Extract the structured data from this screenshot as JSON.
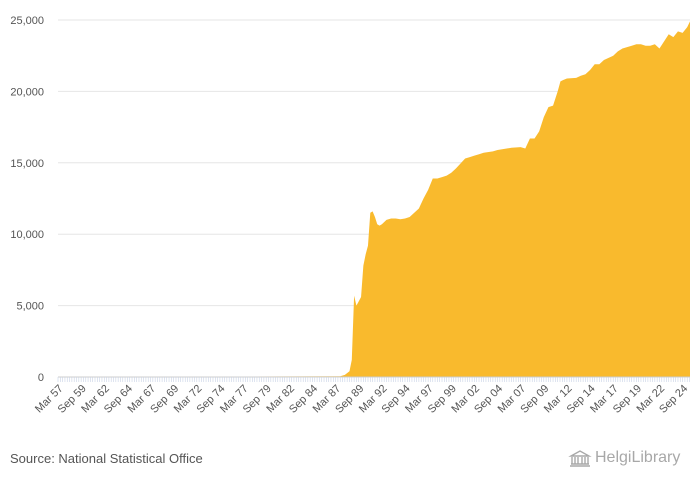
{
  "colors": {
    "area": "#F9BA2D",
    "grid": "#e6e6e6",
    "axis": "#cccccc",
    "text": "#555555"
  },
  "source_text": "Source: National Statistical Office",
  "brand": {
    "name": "HelgiLibrary",
    "logo_icon": "library-building-icon"
  },
  "chart_data": {
    "type": "area",
    "title": "",
    "xlabel": "",
    "ylabel": "",
    "ylim": [
      0,
      25000
    ],
    "yticks": [
      0,
      5000,
      10000,
      15000,
      20000,
      25000
    ],
    "ytick_labels": [
      "0",
      "5,000",
      "10,000",
      "15,000",
      "20,000",
      "25,000"
    ],
    "xtick_labels": [
      "Mar 57",
      "Sep 59",
      "Mar 62",
      "Sep 64",
      "Mar 67",
      "Sep 69",
      "Mar 72",
      "Sep 74",
      "Mar 77",
      "Sep 79",
      "Mar 82",
      "Sep 84",
      "Mar 87",
      "Sep 89",
      "Mar 92",
      "Sep 94",
      "Mar 97",
      "Sep 99",
      "Mar 02",
      "Sep 04",
      "Mar 07",
      "Sep 09",
      "Mar 12",
      "Sep 14",
      "Mar 17",
      "Sep 19",
      "Mar 22",
      "Sep 24"
    ],
    "xtick_years": [
      1957.17,
      1959.67,
      1962.17,
      1964.67,
      1967.17,
      1969.67,
      1972.17,
      1974.67,
      1977.17,
      1979.67,
      1982.17,
      1984.67,
      1987.17,
      1989.67,
      1992.17,
      1994.67,
      1997.17,
      1999.67,
      2002.17,
      2004.67,
      2007.17,
      2009.67,
      2012.17,
      2014.67,
      2017.17,
      2019.67,
      2022.17,
      2024.67
    ],
    "x_range": [
      1957.0,
      2025.3
    ],
    "series": [
      {
        "name": "Value",
        "x": [
          1957.0,
          1987.5,
          1988.0,
          1988.5,
          1988.75,
          1989.0,
          1989.25,
          1989.5,
          1989.75,
          1990.0,
          1990.25,
          1990.5,
          1990.75,
          1991.0,
          1991.25,
          1991.5,
          1991.75,
          1992.0,
          1992.5,
          1993.0,
          1993.5,
          1994.0,
          1994.5,
          1995.0,
          1996.0,
          1996.5,
          1997.0,
          1997.5,
          1998.0,
          1998.5,
          1999.0,
          1999.5,
          2000.0,
          2001.0,
          2001.5,
          2002.0,
          2002.5,
          2003.0,
          2004.0,
          2004.5,
          2005.0,
          2006.0,
          2007.0,
          2007.5,
          2008.0,
          2008.5,
          2009.0,
          2009.5,
          2010.0,
          2010.5,
          2011.0,
          2011.3,
          2011.6,
          2012.0,
          2013.0,
          2013.5,
          2014.0,
          2014.5,
          2015.0,
          2015.5,
          2016.0,
          2017.0,
          2017.5,
          2018.0,
          2019.0,
          2019.5,
          2020.0,
          2020.5,
          2021.0,
          2021.5,
          2022.0,
          2022.5,
          2023.0,
          2023.5,
          2024.0,
          2024.5,
          2025.0,
          2025.3
        ],
        "values": [
          0,
          50,
          150,
          400,
          1200,
          5700,
          5000,
          5300,
          5600,
          7800,
          8600,
          9200,
          11500,
          11600,
          11200,
          10700,
          10600,
          10700,
          11000,
          11100,
          11100,
          11050,
          11100,
          11200,
          11800,
          12500,
          13100,
          13900,
          13900,
          14000,
          14100,
          14300,
          14600,
          15300,
          15400,
          15500,
          15600,
          15700,
          15800,
          15900,
          15950,
          16050,
          16100,
          16000,
          16700,
          16700,
          17200,
          18200,
          18900,
          19000,
          20000,
          20700,
          20800,
          20900,
          20950,
          21100,
          21200,
          21500,
          21900,
          21900,
          22200,
          22500,
          22800,
          23000,
          23200,
          23300,
          23300,
          23200,
          23200,
          23300,
          23000,
          23500,
          24000,
          23800,
          24200,
          24100,
          24500,
          24900
        ]
      }
    ]
  }
}
